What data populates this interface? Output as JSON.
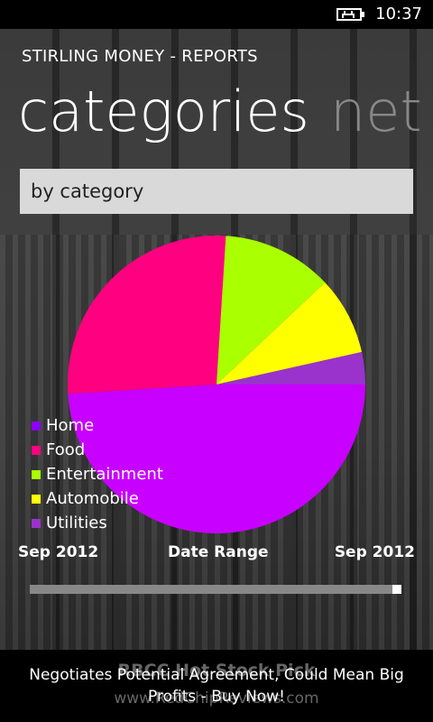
{
  "status_bar": {
    "time": "10:37",
    "battery_icon": "battery-charging-icon"
  },
  "header": {
    "app_title": "STIRLING MONEY - REPORTS"
  },
  "pivot": {
    "active": "categories",
    "next": "net"
  },
  "picker": {
    "value": "by category"
  },
  "chart_data": {
    "type": "pie",
    "categories": [
      "Home",
      "Food",
      "Entertainment",
      "Automobile",
      "Utilities"
    ],
    "values": [
      49,
      27,
      12,
      8.5,
      3.5
    ],
    "colors": [
      "#c800ff",
      "#ff0080",
      "#aaff00",
      "#ffff00",
      "#9933cc"
    ]
  },
  "legend": {
    "items": [
      {
        "label": "Home",
        "color": "#8b00ff"
      },
      {
        "label": "Food",
        "color": "#ff0080"
      },
      {
        "label": "Entertainment",
        "color": "#aaff00"
      },
      {
        "label": "Automobile",
        "color": "#ffff00"
      },
      {
        "label": "Utilities",
        "color": "#9933cc"
      }
    ]
  },
  "date_range": {
    "start": "Sep 2012",
    "label": "Date Range",
    "end": "Sep 2012",
    "slider_position": 1.0
  },
  "ad": {
    "headline": "RBCC Hot Stock Pick",
    "line1": "Negotiates Potential Agreement, Could Mean Big",
    "line2": "Profits - Buy Now!",
    "url": "www.RedChipReviews.com"
  }
}
